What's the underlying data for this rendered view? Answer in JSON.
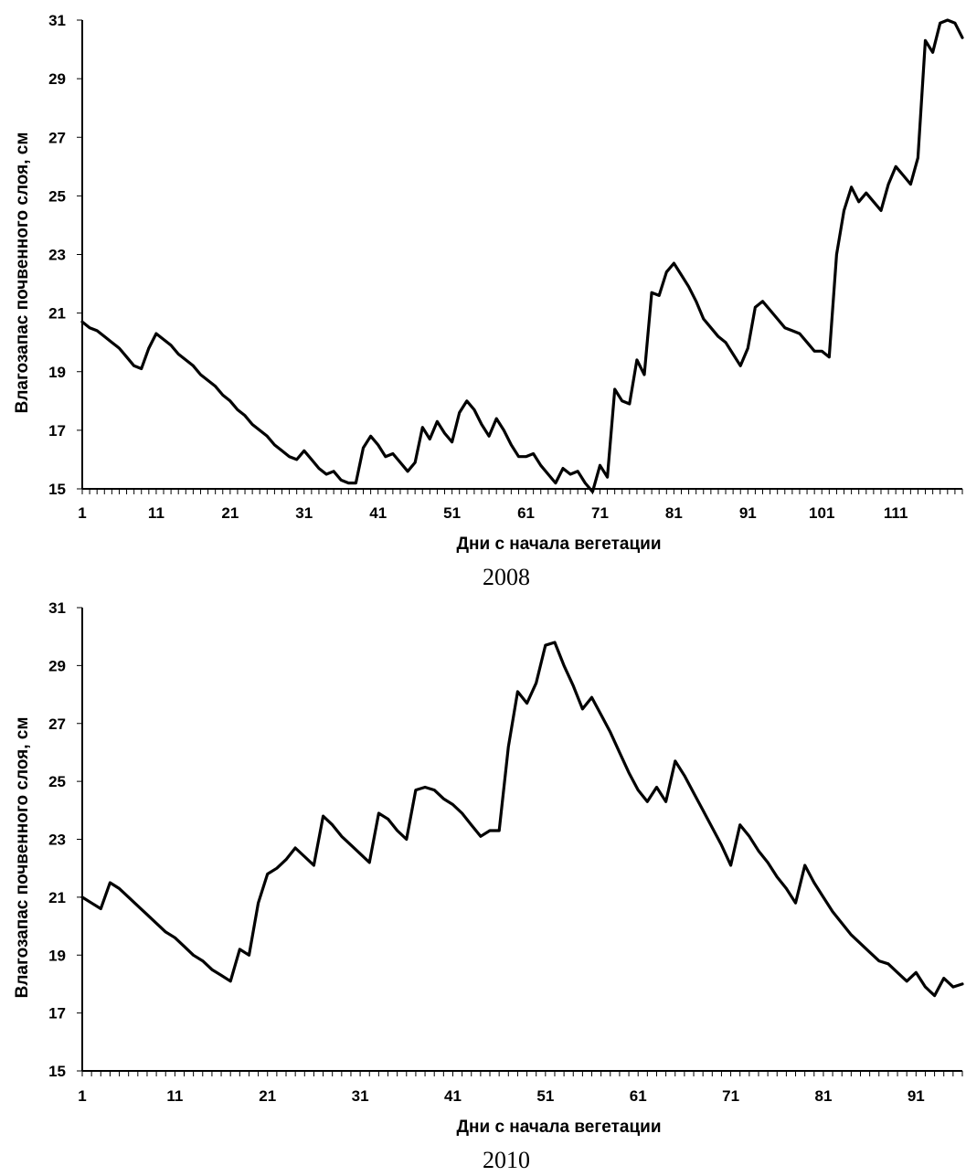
{
  "chart_data": [
    {
      "type": "line",
      "title": "",
      "caption": "2008",
      "xlabel": "Дни с начала вегетации",
      "ylabel": "Влагозапас почвенного слоя, см",
      "ylim": [
        15,
        31
      ],
      "xlim": [
        1,
        120
      ],
      "y_ticks": [
        "15",
        "17",
        "19",
        "21",
        "23",
        "25",
        "27",
        "29",
        "31"
      ],
      "x_ticks": [
        "1",
        "11",
        "21",
        "31",
        "41",
        "51",
        "61",
        "71",
        "81",
        "91",
        "101",
        "111"
      ],
      "grid": false,
      "line_color": "#000000",
      "series": [
        {
          "x": [
            1,
            2,
            3,
            4,
            5,
            6,
            7,
            8,
            9,
            10,
            11,
            12,
            13,
            14,
            15,
            16,
            17,
            18,
            19,
            20,
            21,
            22,
            23,
            24,
            25,
            26,
            27,
            28,
            29,
            30,
            31,
            32,
            33,
            34,
            35,
            36,
            37,
            38,
            39,
            40,
            41,
            42,
            43,
            44,
            45,
            46,
            47,
            48,
            49,
            50,
            51,
            52,
            53,
            54,
            55,
            56,
            57,
            58,
            59,
            60,
            61,
            62,
            63,
            64,
            65,
            66,
            67,
            68,
            69,
            70,
            71,
            72,
            73,
            74,
            75,
            76,
            77,
            78,
            79,
            80,
            81,
            82,
            83,
            84,
            85,
            86,
            87,
            88,
            89,
            90,
            91,
            92,
            93,
            94,
            95,
            96,
            97,
            98,
            99,
            100,
            101,
            102,
            103,
            104,
            105,
            106,
            107,
            108,
            109,
            110,
            111,
            112,
            113,
            114,
            115,
            116,
            117,
            118,
            119,
            120
          ],
          "values": [
            20.7,
            20.5,
            20.4,
            20.2,
            20.0,
            19.8,
            19.5,
            19.2,
            19.1,
            19.8,
            20.3,
            20.1,
            19.9,
            19.6,
            19.4,
            19.2,
            18.9,
            18.7,
            18.5,
            18.2,
            18.0,
            17.7,
            17.5,
            17.2,
            17.0,
            16.8,
            16.5,
            16.3,
            16.1,
            16.0,
            16.3,
            16.0,
            15.7,
            15.5,
            15.6,
            15.3,
            15.2,
            15.2,
            16.4,
            16.8,
            16.5,
            16.1,
            16.2,
            15.9,
            15.6,
            15.9,
            17.1,
            16.7,
            17.3,
            16.9,
            16.6,
            17.6,
            18.0,
            17.7,
            17.2,
            16.8,
            17.4,
            17.0,
            16.5,
            16.1,
            16.1,
            16.2,
            15.8,
            15.5,
            15.2,
            15.7,
            15.5,
            15.6,
            15.2,
            14.9,
            15.8,
            15.4,
            18.4,
            18.0,
            17.9,
            19.4,
            18.9,
            21.7,
            21.6,
            22.4,
            22.7,
            22.3,
            21.9,
            21.4,
            20.8,
            20.5,
            20.2,
            20.0,
            19.6,
            19.2,
            19.8,
            21.2,
            21.4,
            21.1,
            20.8,
            20.5,
            20.4,
            20.3,
            20.0,
            19.7,
            19.7,
            19.5,
            23.0,
            24.5,
            25.3,
            24.8,
            25.1,
            24.8,
            24.5,
            25.4,
            26.0,
            25.7,
            25.4,
            26.3,
            30.3,
            29.9,
            30.9,
            31.0,
            30.9,
            30.4
          ]
        }
      ]
    },
    {
      "type": "line",
      "title": "",
      "caption": "2010",
      "xlabel": "Дни с начала вегетации",
      "ylabel": "Влагозапас почвенного слоя, см",
      "ylim": [
        15,
        31
      ],
      "xlim": [
        1,
        96
      ],
      "y_ticks": [
        "15",
        "17",
        "19",
        "21",
        "23",
        "25",
        "27",
        "29",
        "31"
      ],
      "x_ticks": [
        "1",
        "11",
        "21",
        "31",
        "41",
        "51",
        "61",
        "71",
        "81",
        "91"
      ],
      "grid": false,
      "line_color": "#000000",
      "series": [
        {
          "x": [
            1,
            2,
            3,
            4,
            5,
            6,
            7,
            8,
            9,
            10,
            11,
            12,
            13,
            14,
            15,
            16,
            17,
            18,
            19,
            20,
            21,
            22,
            23,
            24,
            25,
            26,
            27,
            28,
            29,
            30,
            31,
            32,
            33,
            34,
            35,
            36,
            37,
            38,
            39,
            40,
            41,
            42,
            43,
            44,
            45,
            46,
            47,
            48,
            49,
            50,
            51,
            52,
            53,
            54,
            55,
            56,
            57,
            58,
            59,
            60,
            61,
            62,
            63,
            64,
            65,
            66,
            67,
            68,
            69,
            70,
            71,
            72,
            73,
            74,
            75,
            76,
            77,
            78,
            79,
            80,
            81,
            82,
            83,
            84,
            85,
            86,
            87,
            88,
            89,
            90,
            91,
            92,
            93,
            94,
            95,
            96
          ],
          "values": [
            21.0,
            20.8,
            20.6,
            21.5,
            21.3,
            21.0,
            20.7,
            20.4,
            20.1,
            19.8,
            19.6,
            19.3,
            19.0,
            18.8,
            18.5,
            18.3,
            18.1,
            19.2,
            19.0,
            20.8,
            21.8,
            22.0,
            22.3,
            22.7,
            22.4,
            22.1,
            23.8,
            23.5,
            23.1,
            22.8,
            22.5,
            22.2,
            23.9,
            23.7,
            23.3,
            23.0,
            24.7,
            24.8,
            24.7,
            24.4,
            24.2,
            23.9,
            23.5,
            23.1,
            23.3,
            23.3,
            26.2,
            28.1,
            27.7,
            28.4,
            29.7,
            29.8,
            29.0,
            28.3,
            27.5,
            27.9,
            27.3,
            26.7,
            26.0,
            25.3,
            24.7,
            24.3,
            24.8,
            24.3,
            25.7,
            25.2,
            24.6,
            24.0,
            23.4,
            22.8,
            22.1,
            23.5,
            23.1,
            22.6,
            22.2,
            21.7,
            21.3,
            20.8,
            22.1,
            21.5,
            21.0,
            20.5,
            20.1,
            19.7,
            19.4,
            19.1,
            18.8,
            18.7,
            18.4,
            18.1,
            18.4,
            17.9,
            17.6,
            18.2,
            17.9,
            18.0
          ]
        }
      ]
    }
  ]
}
